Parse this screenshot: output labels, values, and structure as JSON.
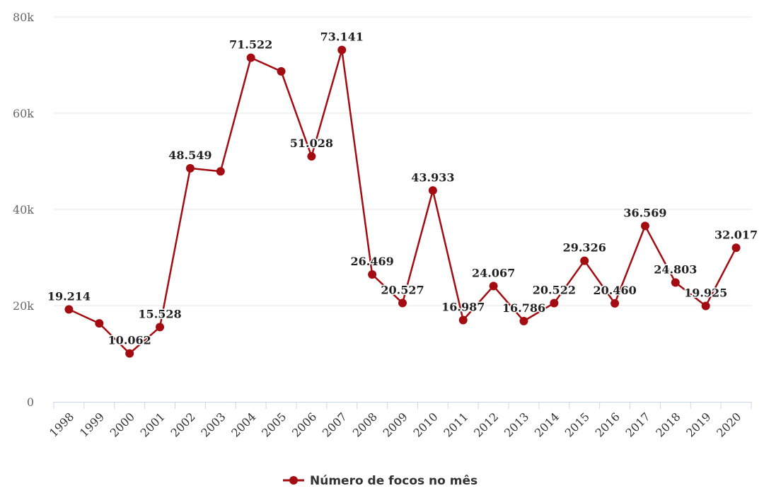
{
  "chart_data": {
    "type": "line",
    "categories": [
      "1998",
      "1999",
      "2000",
      "2001",
      "2002",
      "2003",
      "2004",
      "2005",
      "2006",
      "2007",
      "2008",
      "2009",
      "2010",
      "2011",
      "2012",
      "2013",
      "2014",
      "2015",
      "2016",
      "2017",
      "2018",
      "2019",
      "2020"
    ],
    "series": [
      {
        "name": "Número de focos no mês",
        "values": [
          19214,
          16300,
          10062,
          15528,
          48549,
          47900,
          71522,
          68700,
          51028,
          73141,
          26469,
          20527,
          43933,
          16987,
          24067,
          16786,
          20522,
          29326,
          20460,
          36569,
          24803,
          19925,
          32017
        ],
        "data_labels": [
          "19.214",
          "",
          "10.062",
          "15.528",
          "48.549",
          "",
          "71.522",
          "",
          "51.028",
          "73.141",
          "26.469",
          "20.527",
          "43.933",
          "16.987",
          "24.067",
          "16.786",
          "20.522",
          "29.326",
          "20.460",
          "36.569",
          "24.803",
          "19.925",
          "32.017"
        ],
        "color": "#a30d12"
      }
    ],
    "y_ticks": [
      0,
      20000,
      40000,
      60000,
      80000
    ],
    "y_tick_labels": [
      "0",
      "20k",
      "40k",
      "60k",
      "80k"
    ],
    "ylim": [
      0,
      80000
    ],
    "grid": true,
    "legend_position": "bottom-center",
    "title": "",
    "xlabel": "",
    "ylabel": ""
  }
}
